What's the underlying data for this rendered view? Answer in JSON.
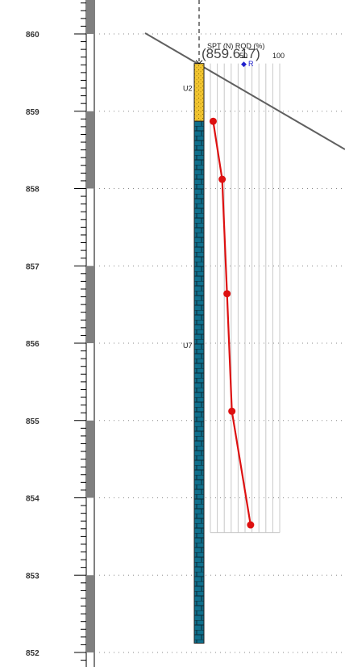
{
  "elevation_axis": {
    "labels": [
      "860",
      "859",
      "858",
      "857",
      "856",
      "855",
      "854",
      "853",
      "852"
    ],
    "values": [
      860,
      859,
      858,
      857,
      856,
      855,
      854,
      853,
      852
    ]
  },
  "borehole": {
    "top_coordinate": "(859.617)",
    "layers": [
      {
        "code": "U2",
        "top": 859.617,
        "bottom": 858.87,
        "color": "#f2c530",
        "pattern": "dots"
      },
      {
        "code": "U7",
        "top": 858.87,
        "bottom": 852.12,
        "color": "#0e6f8c",
        "pattern": "brick"
      }
    ]
  },
  "test_panel": {
    "header_top": "SPT (N) RQD (%)",
    "tick_low": "50",
    "tick_high": "100",
    "legend_symbol": "◆",
    "legend_label": "R"
  },
  "chart_data": {
    "type": "line",
    "series": [
      {
        "values": [
          {
            "elevation": 858.87,
            "value": 4
          },
          {
            "elevation": 858.12,
            "value": 17
          },
          {
            "elevation": 856.64,
            "value": 24
          },
          {
            "elevation": 855.12,
            "value": 31
          },
          {
            "elevation": 853.65,
            "value": 58
          }
        ]
      }
    ],
    "ylim": [
      852,
      860
    ],
    "xlim": [
      0,
      100
    ]
  },
  "colors": {
    "series_line": "#dd1111",
    "ground_line": "#606060",
    "gray_block": "#808080",
    "legend_marker": "#2020cc"
  }
}
